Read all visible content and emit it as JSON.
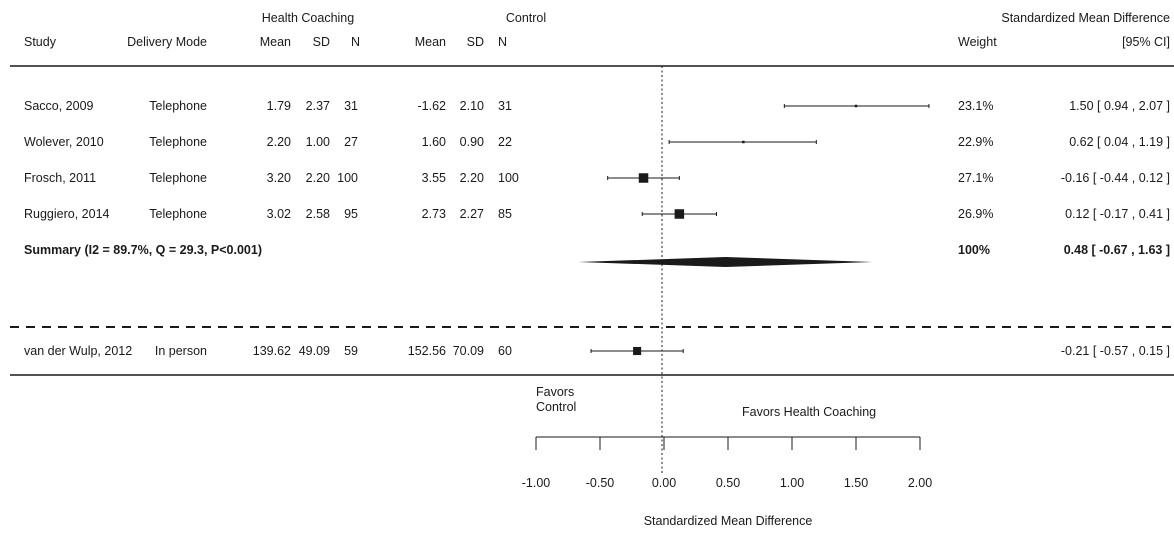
{
  "header": {
    "group1_title": "Health Coaching",
    "group2_title": "Control",
    "smd_title": "Standardized Mean Difference",
    "col_study": "Study",
    "col_delivery": "Delivery Mode",
    "col_mean1": "Mean",
    "col_sd1": "SD",
    "col_n1": "N",
    "col_mean2": "Mean",
    "col_sd2": "SD",
    "col_n2": "N",
    "col_weight": "Weight",
    "col_ci": "[95% CI]"
  },
  "colors": {
    "ink": "#1a1a1a",
    "background": "#ffffff"
  },
  "chart_data": {
    "type": "forest",
    "xlim": [
      -1.0,
      2.0
    ],
    "ticks": [
      -1.0,
      -0.5,
      0.0,
      0.5,
      1.0,
      1.5,
      2.0
    ],
    "tick_labels": [
      "-1.00",
      "-0.50",
      "0.00",
      "0.50",
      "1.00",
      "1.50",
      "2.00"
    ],
    "reference_line": 0,
    "xlabel": "Standardized Mean Difference",
    "favors_left": "Favors\nControl",
    "favors_right": "Favors  Health Coaching",
    "studies": [
      {
        "study": "Sacco, 2009",
        "mode": "Telephone",
        "mean1": "1.79",
        "sd1": "2.37",
        "n1": "31",
        "mean2": "-1.62",
        "sd2": "2.10",
        "n2": "31",
        "weight": "23.1%",
        "ci_text": "1.50 [ 0.94 , 2.07 ]",
        "est": 1.5,
        "lo": 0.94,
        "hi": 2.07,
        "box": 0.05
      },
      {
        "study": "Wolever, 2010",
        "mode": "Telephone",
        "mean1": "2.20",
        "sd1": "1.00",
        "n1": "27",
        "mean2": "1.60",
        "sd2": "0.90",
        "n2": "22",
        "weight": "22.9%",
        "ci_text": "0.62 [ 0.04 , 1.19 ]",
        "est": 0.62,
        "lo": 0.04,
        "hi": 1.19,
        "box": 0.05
      },
      {
        "study": "Frosch, 2011",
        "mode": "Telephone",
        "mean1": "3.20",
        "sd1": "2.20",
        "n1": "100",
        "mean2": "3.55",
        "sd2": "2.20",
        "n2": "100",
        "weight": "27.1%",
        "ci_text": "-0.16 [ -0.44 , 0.12 ]",
        "est": -0.16,
        "lo": -0.44,
        "hi": 0.12,
        "box": 1
      },
      {
        "study": "Ruggiero, 2014",
        "mode": "Telephone",
        "mean1": "3.02",
        "sd1": "2.58",
        "n1": "95",
        "mean2": "2.73",
        "sd2": "2.27",
        "n2": "85",
        "weight": "26.9%",
        "ci_text": "0.12 [ -0.17 , 0.41 ]",
        "est": 0.12,
        "lo": -0.17,
        "hi": 0.41,
        "box": 1
      }
    ],
    "summary": {
      "label": "Summary (I2 = 89.7%, Q = 29.3, P<0.001)",
      "weight": "100%",
      "ci_text": "0.48 [ -0.67 , 1.63 ]",
      "est": 0.48,
      "lo": -0.67,
      "hi": 1.63
    },
    "separate_study": {
      "study": "van der Wulp, 2012",
      "mode": "In person",
      "mean1": "139.62",
      "sd1": "49.09",
      "n1": "59",
      "mean2": "152.56",
      "sd2": "70.09",
      "n2": "60",
      "weight": "",
      "ci_text": "-0.21 [ -0.57 , 0.15 ]",
      "est": -0.21,
      "lo": -0.57,
      "hi": 0.15,
      "box": 0.85
    }
  }
}
